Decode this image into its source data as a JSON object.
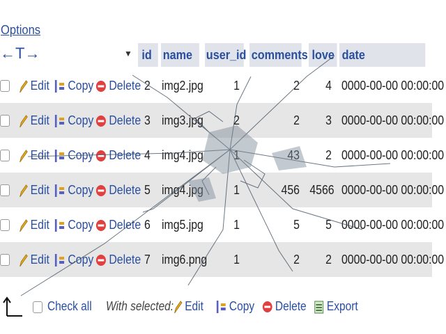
{
  "options_label": "Options",
  "header": {
    "columns": [
      "id",
      "name",
      "user_id",
      "comments",
      "love",
      "date"
    ]
  },
  "actions": {
    "edit": "Edit",
    "copy": "Copy",
    "delete": "Delete"
  },
  "rows": [
    {
      "id": "2",
      "name": "img2.jpg",
      "user_id": "1",
      "comments": "2",
      "love": "4",
      "date": "0000-00-00 00:00:00"
    },
    {
      "id": "3",
      "name": "img3.jpg",
      "user_id": "2",
      "comments": "2",
      "love": "3",
      "date": "0000-00-00 00:00:00"
    },
    {
      "id": "4",
      "name": "img4.jpg",
      "user_id": "1",
      "comments": "43",
      "love": "2",
      "date": "0000-00-00 00:00:00"
    },
    {
      "id": "5",
      "name": "img4.jpg",
      "user_id": "1",
      "comments": "456",
      "love": "4566",
      "date": "0000-00-00 00:00:00"
    },
    {
      "id": "6",
      "name": "img5.jpg",
      "user_id": "1",
      "comments": "5",
      "love": "5",
      "date": "0000-00-00 00:00:00"
    },
    {
      "id": "7",
      "name": "img6.png",
      "user_id": "1",
      "comments": "2",
      "love": "2",
      "date": "0000-00-00 00:00:00"
    }
  ],
  "footer": {
    "check_all": "Check all",
    "with_selected": "With selected:",
    "edit": "Edit",
    "copy": "Copy",
    "delete": "Delete",
    "export": "Export"
  }
}
